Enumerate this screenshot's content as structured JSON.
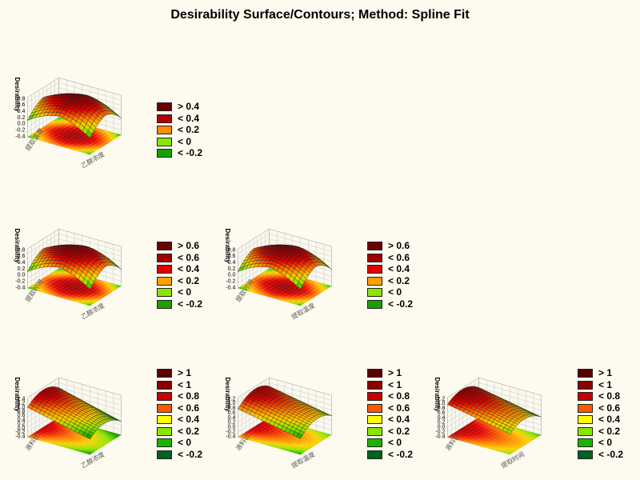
{
  "title": "Desirability Surface/Contours; Method: Spline Fit",
  "palette": {
    "8": [
      "#5a0000",
      "#8a0000",
      "#c80000",
      "#ff5a00",
      "#ffff00",
      "#8ae600",
      "#19b400",
      "#00641e"
    ],
    "6": [
      "#6a0000",
      "#a00000",
      "#e00000",
      "#ffa000",
      "#8ae600",
      "#19a000"
    ],
    "5": [
      "#6a0000",
      "#b40000",
      "#ff8c00",
      "#8ae600",
      "#19a000"
    ]
  },
  "chart_data": [
    {
      "type": "surface",
      "ylabel": "Desirability",
      "x_axis_label": "提取温度",
      "z_axis_label": "乙醇浓度",
      "z_ticks": [
        "0.8",
        "0.6",
        "0.4",
        "0.2",
        "0.0",
        "-0.2",
        "-0.4"
      ],
      "zlim": [
        -0.4,
        0.8
      ],
      "shape": "saddle-dome",
      "legend": [
        "> 0.4",
        "< 0.4",
        "< 0.2",
        "< 0",
        "< -0.2"
      ]
    },
    {
      "type": "surface",
      "ylabel": "Desirability",
      "x_axis_label": "提取时间",
      "z_axis_label": "乙醇浓度",
      "z_ticks": [
        "0.8",
        "0.6",
        "0.4",
        "0.2",
        "0.0",
        "-0.2",
        "-0.4"
      ],
      "zlim": [
        -0.4,
        0.8
      ],
      "shape": "saddle-dome",
      "legend": [
        "> 0.6",
        "< 0.6",
        "< 0.4",
        "< 0.2",
        "< 0",
        "< -0.2"
      ]
    },
    {
      "type": "surface",
      "ylabel": "Desirability",
      "x_axis_label": "提取时间",
      "z_axis_label": "提取温度",
      "z_ticks": [
        "0.8",
        "0.6",
        "0.4",
        "0.2",
        "0.0",
        "-0.2",
        "-0.4"
      ],
      "zlim": [
        -0.4,
        0.8
      ],
      "shape": "saddle-dome",
      "legend": [
        "> 0.6",
        "< 0.6",
        "< 0.4",
        "< 0.2",
        "< 0",
        "< -0.2"
      ]
    },
    {
      "type": "surface",
      "ylabel": "Desirability",
      "x_axis_label": "液料比",
      "z_axis_label": "乙醇浓度",
      "z_ticks": [
        "1.4",
        "1.2",
        "1.0",
        "0.8",
        "0.6",
        "0.4",
        "0.2",
        "0.0",
        "-0.2",
        "-0.4"
      ],
      "zlim": [
        -0.4,
        1.4
      ],
      "shape": "tilted",
      "legend": [
        "> 1",
        "< 1",
        "< 0.8",
        "< 0.6",
        "< 0.4",
        "< 0.2",
        "< 0",
        "< -0.2"
      ]
    },
    {
      "type": "surface",
      "ylabel": "Desirability",
      "x_axis_label": "液料比",
      "z_axis_label": "提取温度",
      "z_ticks": [
        "1.2",
        "1.0",
        "0.8",
        "0.6",
        "0.4",
        "0.2",
        "0.0",
        "-0.2",
        "-0.4"
      ],
      "zlim": [
        -0.4,
        1.2
      ],
      "shape": "ridge",
      "legend": [
        "> 1",
        "< 1",
        "< 0.8",
        "< 0.6",
        "< 0.4",
        "< 0.2",
        "< 0",
        "< -0.2"
      ]
    },
    {
      "type": "surface",
      "ylabel": "Desirability",
      "x_axis_label": "液料比",
      "z_axis_label": "提取时间",
      "z_ticks": [
        "1.2",
        "1.0",
        "0.8",
        "0.6",
        "0.4",
        "0.2",
        "0.0",
        "-0.2",
        "-0.4"
      ],
      "zlim": [
        -0.4,
        1.2
      ],
      "shape": "ridge2",
      "legend": [
        "> 1",
        "< 1",
        "< 0.8",
        "< 0.6",
        "< 0.4",
        "< 0.2",
        "< 0",
        "< -0.2"
      ]
    }
  ]
}
